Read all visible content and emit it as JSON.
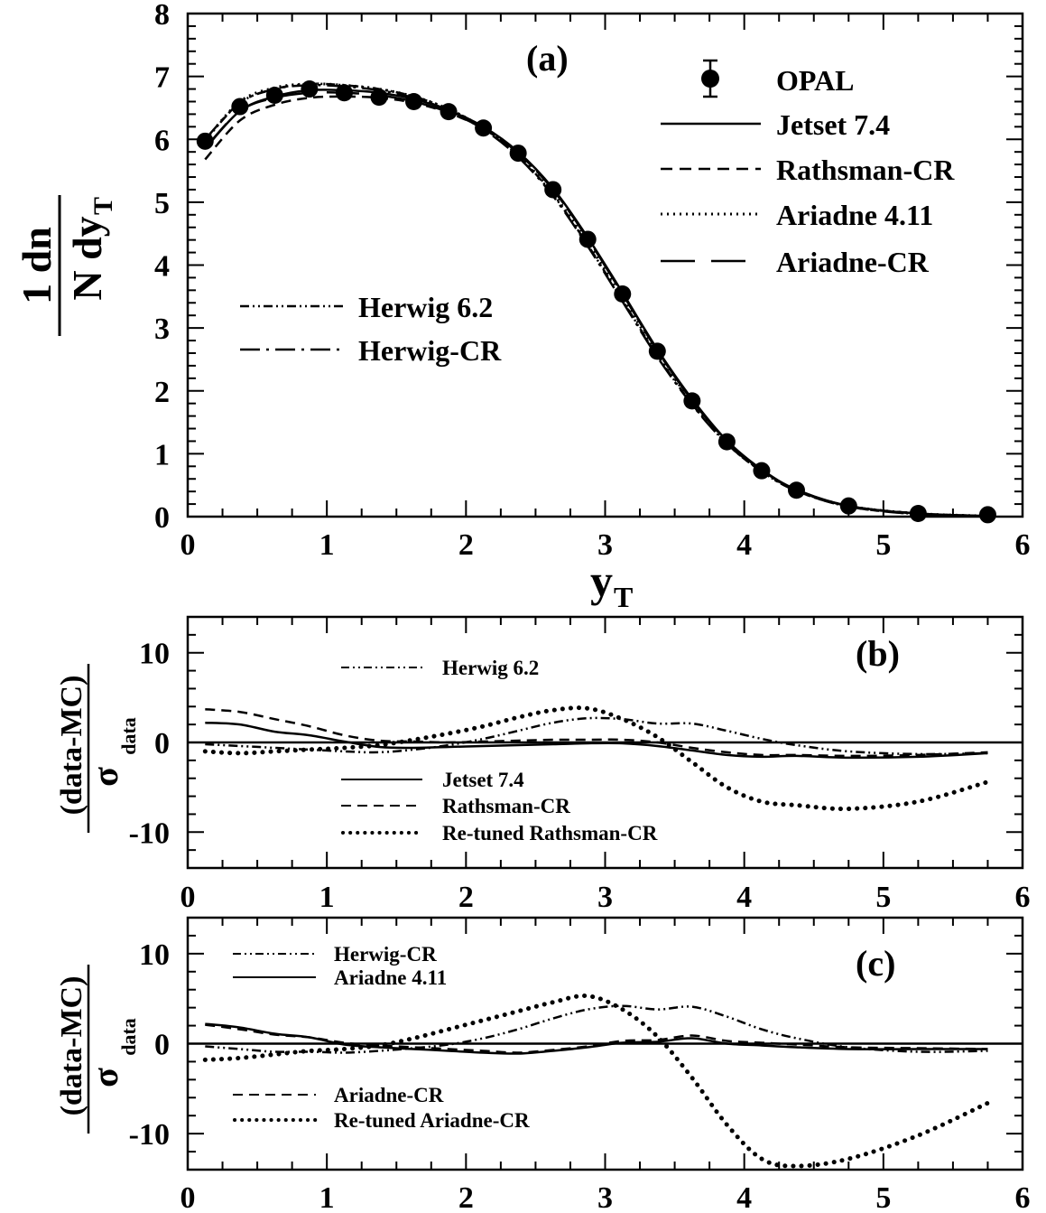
{
  "chart_data": [
    {
      "type": "line",
      "panel_label": "(a)",
      "ylabel_frac_top": "1 dn",
      "ylabel_frac_bottom": "N dy",
      "ylabel_sub": "T",
      "xlabel": "y",
      "xlabel_sub": "T",
      "xlim": [
        0,
        6
      ],
      "ylim": [
        0,
        8
      ],
      "xticks": [
        "0",
        "1",
        "2",
        "3",
        "4",
        "5",
        "6"
      ],
      "yticks": [
        "0",
        "1",
        "2",
        "3",
        "4",
        "5",
        "6",
        "7",
        "8"
      ],
      "data_points": {
        "name": "OPAL",
        "x": [
          0.125,
          0.375,
          0.625,
          0.875,
          1.125,
          1.375,
          1.625,
          1.875,
          2.125,
          2.375,
          2.625,
          2.875,
          3.125,
          3.375,
          3.625,
          3.875,
          4.125,
          4.375,
          4.75,
          5.25,
          5.75
        ],
        "y": [
          5.97,
          6.52,
          6.7,
          6.8,
          6.74,
          6.67,
          6.6,
          6.44,
          6.18,
          5.78,
          5.2,
          4.41,
          3.54,
          2.63,
          1.84,
          1.19,
          0.73,
          0.42,
          0.17,
          0.05,
          0.03
        ]
      },
      "series": [
        {
          "name": "Jetset 7.4",
          "style": "solid",
          "x": [
            0.125,
            0.375,
            0.625,
            0.875,
            1.125,
            1.375,
            1.625,
            1.875,
            2.125,
            2.375,
            2.625,
            2.875,
            3.125,
            3.375,
            3.625,
            3.875,
            4.125,
            4.375,
            4.75,
            5.25,
            5.75
          ],
          "y": [
            5.85,
            6.45,
            6.68,
            6.78,
            6.78,
            6.74,
            6.64,
            6.46,
            6.2,
            5.8,
            5.22,
            4.44,
            3.56,
            2.66,
            1.87,
            1.21,
            0.75,
            0.43,
            0.17,
            0.05,
            0.01
          ]
        },
        {
          "name": "Rathsman-CR",
          "style": "dashed",
          "x": [
            0.125,
            0.375,
            0.625,
            0.875,
            1.125,
            1.375,
            1.625,
            1.875,
            2.125,
            2.375,
            2.625,
            2.875,
            3.125,
            3.375,
            3.625,
            3.875,
            4.125,
            4.375,
            4.75,
            5.25,
            5.75
          ],
          "y": [
            5.68,
            6.3,
            6.55,
            6.66,
            6.68,
            6.66,
            6.58,
            6.42,
            6.17,
            5.78,
            5.2,
            4.42,
            3.54,
            2.64,
            1.85,
            1.2,
            0.74,
            0.42,
            0.17,
            0.05,
            0.01
          ]
        },
        {
          "name": "Ariadne 4.11",
          "style": "dotted",
          "x": [
            0.125,
            0.375,
            0.625,
            0.875,
            1.125,
            1.375,
            1.625,
            1.875,
            2.125,
            2.375,
            2.625,
            2.875,
            3.125,
            3.375,
            3.625,
            3.875,
            4.125,
            4.375,
            4.75,
            5.25,
            5.75
          ],
          "y": [
            5.98,
            6.6,
            6.82,
            6.88,
            6.86,
            6.8,
            6.68,
            6.48,
            6.18,
            5.75,
            5.14,
            4.35,
            3.48,
            2.6,
            1.82,
            1.18,
            0.73,
            0.42,
            0.17,
            0.05,
            0.01
          ]
        },
        {
          "name": "Ariadne-CR",
          "style": "longdash",
          "x": [
            0.125,
            0.375,
            0.625,
            0.875,
            1.125,
            1.375,
            1.625,
            1.875,
            2.125,
            2.375,
            2.625,
            2.875,
            3.125,
            3.375,
            3.625,
            3.875,
            4.125,
            4.375,
            4.75,
            5.25,
            5.75
          ],
          "y": [
            5.86,
            6.45,
            6.66,
            6.74,
            6.74,
            6.7,
            6.6,
            6.43,
            6.17,
            5.78,
            5.2,
            4.42,
            3.54,
            2.64,
            1.85,
            1.2,
            0.74,
            0.42,
            0.17,
            0.05,
            0.01
          ]
        },
        {
          "name": "Herwig 6.2",
          "style": "dashdotdot",
          "x": [
            0.125,
            0.375,
            0.625,
            0.875,
            1.125,
            1.375,
            1.625,
            1.875,
            2.125,
            2.375,
            2.625,
            2.875,
            3.125,
            3.375,
            3.625,
            3.875,
            4.125,
            4.375,
            4.75,
            5.25,
            5.75
          ],
          "y": [
            5.98,
            6.58,
            6.8,
            6.88,
            6.86,
            6.8,
            6.68,
            6.48,
            6.18,
            5.74,
            5.12,
            4.32,
            3.44,
            2.56,
            1.79,
            1.16,
            0.72,
            0.41,
            0.16,
            0.04,
            0.01
          ]
        },
        {
          "name": "Herwig-CR",
          "style": "dashdot",
          "x": [
            0.125,
            0.375,
            0.625,
            0.875,
            1.125,
            1.375,
            1.625,
            1.875,
            2.125,
            2.375,
            2.625,
            2.875,
            3.125,
            3.375,
            3.625,
            3.875,
            4.125,
            4.375,
            4.75,
            5.25,
            5.75
          ],
          "y": [
            6.0,
            6.58,
            6.8,
            6.86,
            6.84,
            6.78,
            6.66,
            6.46,
            6.16,
            5.72,
            5.1,
            4.3,
            3.42,
            2.54,
            1.78,
            1.16,
            0.72,
            0.41,
            0.16,
            0.04,
            0.01
          ]
        }
      ]
    },
    {
      "type": "line",
      "panel_label": "(b)",
      "ylabel_num": "(data-MC)",
      "ylabel_den": "σ",
      "ylabel_sub": "data",
      "xlim": [
        0,
        6
      ],
      "ylim": [
        -14,
        14
      ],
      "xticks": [
        "0",
        "1",
        "2",
        "3",
        "4",
        "5",
        "6"
      ],
      "yticks": [
        "-10",
        "0",
        "10"
      ],
      "series": [
        {
          "name": "Herwig 6.2",
          "style": "dashdotdot",
          "x": [
            0.125,
            0.375,
            0.625,
            0.875,
            1.125,
            1.375,
            1.625,
            1.875,
            2.125,
            2.375,
            2.625,
            2.875,
            3.125,
            3.375,
            3.625,
            3.875,
            4.125,
            4.375,
            4.75,
            5.25,
            5.75
          ],
          "y": [
            -0.2,
            -0.4,
            -0.6,
            -0.8,
            -1.0,
            -1.1,
            -0.8,
            -0.3,
            0.4,
            1.3,
            2.2,
            2.7,
            2.6,
            2.1,
            2.1,
            1.3,
            0.4,
            -0.3,
            -1.0,
            -1.3,
            -1.2
          ]
        },
        {
          "name": "Jetset 7.4",
          "style": "solid",
          "x": [
            0.125,
            0.375,
            0.625,
            0.875,
            1.125,
            1.375,
            1.625,
            1.875,
            2.125,
            2.375,
            2.625,
            2.875,
            3.125,
            3.375,
            3.625,
            3.875,
            4.125,
            4.375,
            4.75,
            5.25,
            5.75
          ],
          "y": [
            2.2,
            2.0,
            1.2,
            0.8,
            0.1,
            -0.5,
            -0.6,
            -0.5,
            -0.4,
            -0.3,
            -0.2,
            -0.1,
            -0.1,
            -0.4,
            -0.9,
            -1.4,
            -1.6,
            -1.5,
            -1.7,
            -1.6,
            -1.2
          ]
        },
        {
          "name": "Rathsman-CR",
          "style": "dashed",
          "x": [
            0.125,
            0.375,
            0.625,
            0.875,
            1.125,
            1.375,
            1.625,
            1.875,
            2.125,
            2.375,
            2.625,
            2.875,
            3.125,
            3.375,
            3.625,
            3.875,
            4.125,
            4.375,
            4.75,
            5.25,
            5.75
          ],
          "y": [
            3.7,
            3.4,
            2.6,
            1.8,
            0.8,
            0.2,
            0.1,
            0.0,
            0.1,
            0.2,
            0.3,
            0.3,
            0.3,
            0.0,
            -0.6,
            -1.1,
            -1.4,
            -1.4,
            -1.5,
            -1.4,
            -1.1
          ]
        },
        {
          "name": "Re-tuned Rathsman-CR",
          "style": "bigdots",
          "x": [
            0.125,
            0.375,
            0.625,
            0.875,
            1.125,
            1.375,
            1.625,
            1.875,
            2.125,
            2.375,
            2.625,
            2.875,
            3.125,
            3.375,
            3.625,
            3.875,
            4.125,
            4.375,
            4.75,
            5.25,
            5.75
          ],
          "y": [
            -1.0,
            -1.2,
            -1.0,
            -0.8,
            -0.6,
            -0.3,
            0.3,
            1.0,
            1.8,
            2.8,
            3.6,
            3.8,
            2.6,
            0.6,
            -2.2,
            -5.0,
            -6.6,
            -7.0,
            -7.4,
            -6.6,
            -4.4
          ]
        }
      ]
    },
    {
      "type": "line",
      "panel_label": "(c)",
      "ylabel_num": "(data-MC)",
      "ylabel_den": "σ",
      "ylabel_sub": "data",
      "xlim": [
        0,
        6
      ],
      "ylim": [
        -14,
        14
      ],
      "xticks": [
        "0",
        "1",
        "2",
        "3",
        "4",
        "5",
        "6"
      ],
      "yticks": [
        "-10",
        "0",
        "10"
      ],
      "series": [
        {
          "name": "Herwig-CR",
          "style": "dashdotdot",
          "x": [
            0.125,
            0.375,
            0.625,
            0.875,
            1.125,
            1.375,
            1.625,
            1.875,
            2.125,
            2.375,
            2.625,
            2.875,
            3.125,
            3.375,
            3.625,
            3.875,
            4.125,
            4.375,
            4.75,
            5.25,
            5.75
          ],
          "y": [
            -0.3,
            -0.6,
            -0.9,
            -0.9,
            -1.0,
            -0.8,
            -0.5,
            -0.1,
            0.6,
            1.6,
            2.8,
            3.8,
            4.2,
            3.8,
            4.1,
            3.0,
            1.6,
            0.6,
            -0.4,
            -0.9,
            -0.8
          ]
        },
        {
          "name": "Ariadne 4.11",
          "style": "solid",
          "x": [
            0.125,
            0.375,
            0.625,
            0.875,
            1.125,
            1.375,
            1.625,
            1.875,
            2.125,
            2.375,
            2.625,
            2.875,
            3.125,
            3.375,
            3.625,
            3.875,
            4.125,
            4.375,
            4.75,
            5.25,
            5.75
          ],
          "y": [
            2.2,
            1.8,
            1.1,
            0.7,
            -0.1,
            -0.4,
            -0.6,
            -0.8,
            -1.0,
            -1.1,
            -0.8,
            -0.4,
            0.1,
            0.2,
            0.6,
            0.0,
            -0.2,
            -0.4,
            -0.6,
            -0.6,
            -0.6
          ]
        },
        {
          "name": "Ariadne-CR",
          "style": "dashed",
          "x": [
            0.125,
            0.375,
            0.625,
            0.875,
            1.125,
            1.375,
            1.625,
            1.875,
            2.125,
            2.375,
            2.625,
            2.875,
            3.125,
            3.375,
            3.625,
            3.875,
            4.125,
            4.375,
            4.75,
            5.25,
            5.75
          ],
          "y": [
            2.1,
            1.6,
            1.0,
            0.7,
            0.1,
            -0.2,
            -0.4,
            -0.6,
            -0.8,
            -1.0,
            -0.7,
            -0.3,
            0.3,
            0.4,
            0.9,
            0.3,
            0.1,
            -0.1,
            -0.4,
            -0.5,
            -0.6
          ]
        },
        {
          "name": "Re-tuned Ariadne-CR",
          "style": "bigdots",
          "x": [
            0.125,
            0.375,
            0.625,
            0.875,
            1.125,
            1.375,
            1.625,
            1.875,
            2.125,
            2.375,
            2.625,
            2.875,
            3.125,
            3.375,
            3.625,
            3.875,
            4.125,
            4.375,
            4.75,
            5.25,
            5.75
          ],
          "y": [
            -1.8,
            -1.6,
            -1.2,
            -0.8,
            -0.6,
            -0.2,
            0.6,
            1.6,
            2.6,
            3.6,
            4.6,
            5.3,
            3.8,
            0.8,
            -3.8,
            -9.0,
            -12.8,
            -13.6,
            -12.8,
            -10.2,
            -6.6
          ]
        }
      ]
    }
  ]
}
